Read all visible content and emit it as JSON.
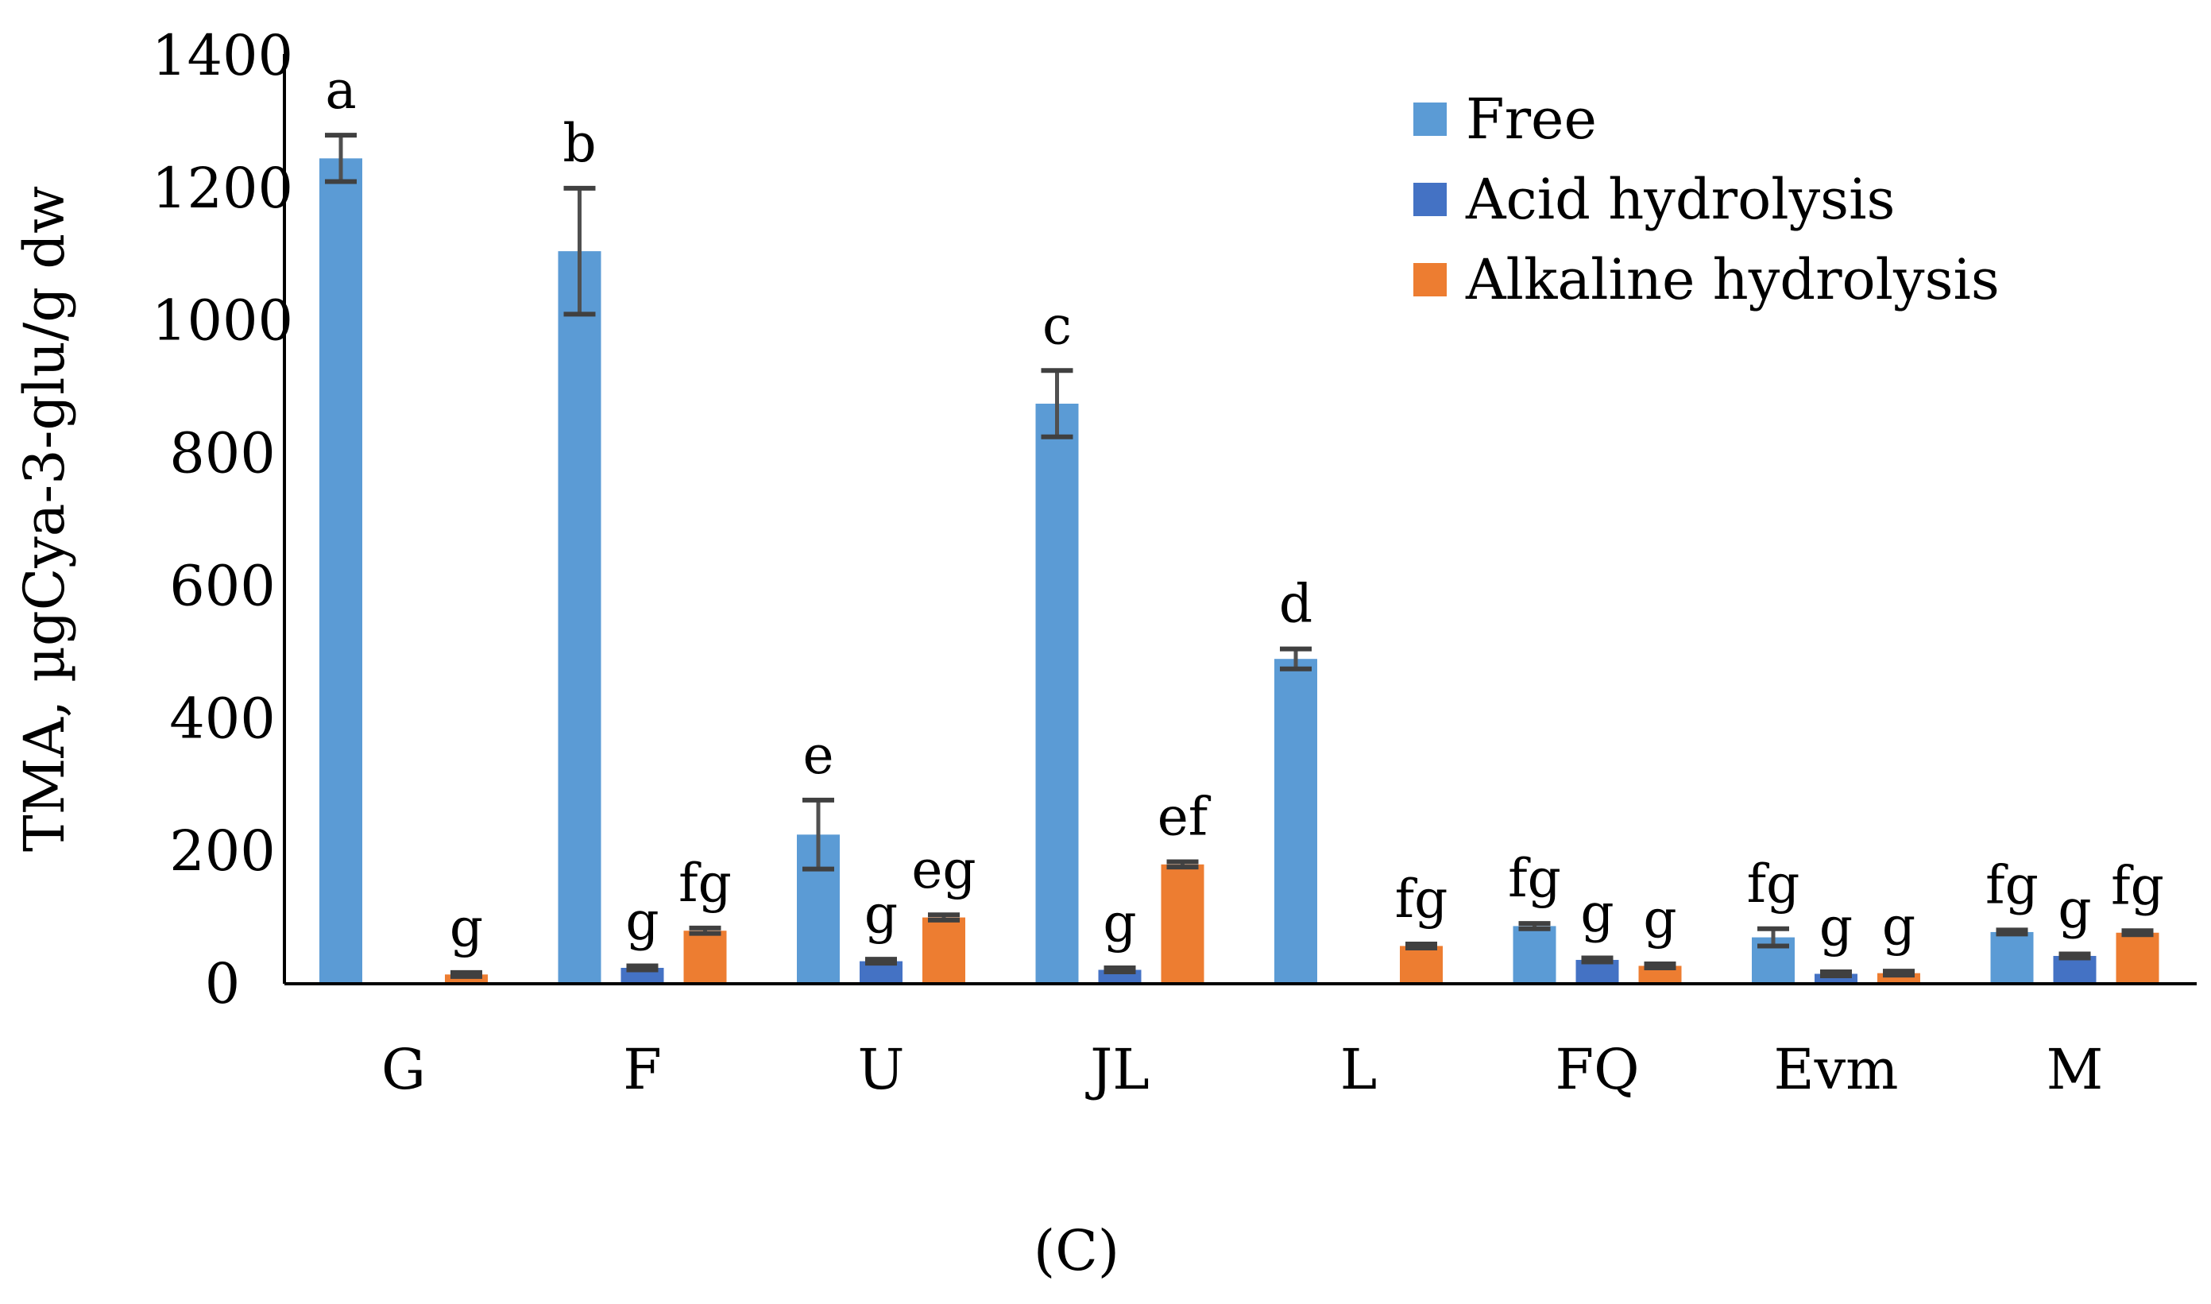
{
  "chart_data": {
    "type": "bar",
    "title": "",
    "xlabel": "",
    "ylabel": "TMA, µgCya-3-glu/g dw",
    "ylim": [
      0,
      1400
    ],
    "yticks": [
      "0",
      "200",
      "400",
      "600",
      "800",
      "1000",
      "1200",
      "1400"
    ],
    "grid": false,
    "legend_position": "top-right",
    "categories": [
      "G",
      "F",
      "U",
      "JL",
      "L",
      "FQ",
      "Evm",
      "M"
    ],
    "series": [
      {
        "name": "Free",
        "color": "#5b9bd5",
        "values": [
          1245,
          1105,
          225,
          875,
          490,
          87,
          70,
          78
        ],
        "errors": [
          35,
          95,
          52,
          50,
          15,
          4,
          13,
          3
        ],
        "labels": [
          "a",
          "b",
          "e",
          "c",
          "d",
          "fg",
          "fg",
          "fg"
        ]
      },
      {
        "name": "Acid hydrolysis",
        "color": "#4472c4",
        "values": [
          null,
          24,
          34,
          21,
          null,
          36,
          15,
          42
        ],
        "errors": [
          0,
          3,
          3,
          3,
          0,
          3,
          3,
          3
        ],
        "labels": [
          "",
          "g",
          "g",
          "g",
          "",
          "g",
          "g",
          "g"
        ]
      },
      {
        "name": "Alkaline hydrolysis",
        "color": "#ed7d31",
        "values": [
          14,
          80,
          100,
          180,
          57,
          27,
          16,
          77
        ],
        "errors": [
          3,
          4,
          4,
          4,
          3,
          3,
          3,
          3
        ],
        "labels": [
          "g",
          "fg",
          "eg",
          "ef",
          "fg",
          "g",
          "g",
          "fg"
        ]
      }
    ]
  },
  "panel_label": "(C)"
}
